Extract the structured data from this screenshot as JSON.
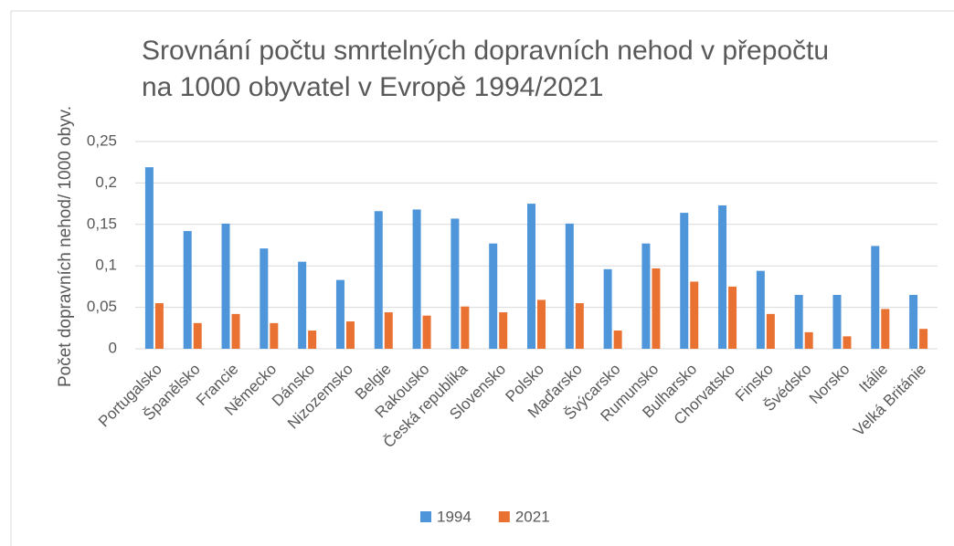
{
  "chart_data": {
    "type": "bar",
    "title": "Srovnání počtu smrtelných dopravních nehod v přepočtu na 1000 obyvatel v Evropě 1994/2021",
    "y_label": "Počet dopravních nehod/ 1000 obyv.",
    "categories": [
      "Portugalsko",
      "Španělsko",
      "Francie",
      "Německo",
      "Dánsko",
      "Nizozemsko",
      "Belgie",
      "Rakousko",
      "Česká republika",
      "Slovensko",
      "Polsko",
      "Maďarsko",
      "Švýcarsko",
      "Rumunsko",
      "Bulharsko",
      "Chorvatsko",
      "Finsko",
      "Švédsko",
      "Norsko",
      "Itálie",
      "Velká Británie"
    ],
    "series": [
      {
        "name": "1994",
        "color": "#4e95d9",
        "values": [
          0.219,
          0.142,
          0.151,
          0.121,
          0.105,
          0.083,
          0.166,
          0.168,
          0.157,
          0.127,
          0.175,
          0.151,
          0.096,
          0.127,
          0.164,
          0.173,
          0.094,
          0.065,
          0.065,
          0.124,
          0.065
        ]
      },
      {
        "name": "2021",
        "color": "#e97132",
        "values": [
          0.055,
          0.031,
          0.042,
          0.031,
          0.022,
          0.033,
          0.044,
          0.04,
          0.051,
          0.044,
          0.059,
          0.055,
          0.022,
          0.097,
          0.081,
          0.075,
          0.042,
          0.02,
          0.015,
          0.048,
          0.024
        ]
      }
    ],
    "ylim": [
      0,
      0.25
    ],
    "yticks": [
      0,
      {
        "value": 0.05,
        "label": "0,05"
      },
      {
        "value": 0.1,
        "label": "0,1"
      },
      {
        "value": 0.15,
        "label": "0,15"
      },
      {
        "value": 0.2,
        "label": "0,2"
      },
      {
        "value": 0.25,
        "label": "0,25"
      }
    ],
    "grid": true,
    "legend": "bottom"
  }
}
